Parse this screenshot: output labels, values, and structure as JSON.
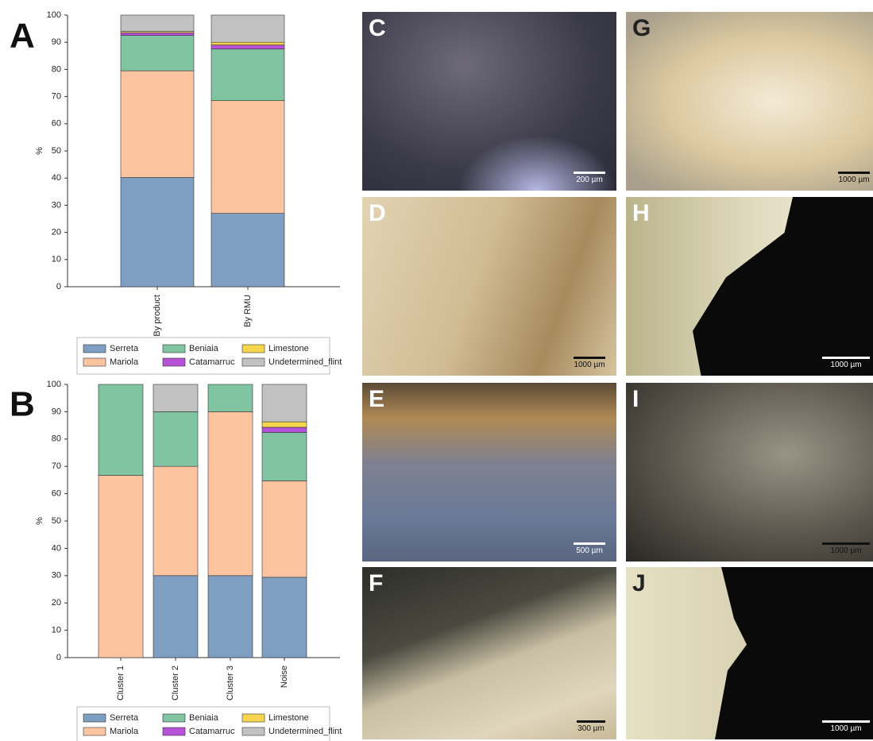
{
  "chart_data": [
    {
      "type": "stacked-bar",
      "panel_label": "A",
      "ylabel": "%",
      "categories": [
        "By product",
        "By RMU"
      ],
      "series": [
        {
          "name": "Serreta",
          "color": "#7f9fc2",
          "values": [
            40.2,
            27
          ]
        },
        {
          "name": "Mariola",
          "color": "#fdc4a2",
          "values": [
            39.3,
            41.5
          ]
        },
        {
          "name": "Beniaia",
          "color": "#80c4a1",
          "values": [
            13,
            19
          ]
        },
        {
          "name": "Catamarruc",
          "color": "#b552d8",
          "values": [
            1,
            1.5
          ]
        },
        {
          "name": "Limestone",
          "color": "#f6d64c",
          "values": [
            0.5,
            1
          ]
        },
        {
          "name": "Undetermined_flint",
          "color": "#c2c2c2",
          "values": [
            6,
            10
          ]
        }
      ],
      "ylim": [
        0,
        100
      ],
      "yticks": [
        0,
        10,
        20,
        30,
        40,
        50,
        60,
        70,
        80,
        90,
        100
      ]
    },
    {
      "type": "stacked-bar",
      "panel_label": "B",
      "ylabel": "%",
      "categories": [
        "Cluster 1",
        "Cluster 2",
        "Cluster 3",
        "Noise"
      ],
      "series": [
        {
          "name": "Serreta",
          "color": "#7f9fc2",
          "values": [
            0,
            30,
            30,
            29.4
          ]
        },
        {
          "name": "Mariola",
          "color": "#fdc4a2",
          "values": [
            66.7,
            40,
            60,
            35.3
          ]
        },
        {
          "name": "Beniaia",
          "color": "#80c4a1",
          "values": [
            33.3,
            20,
            10,
            17.7
          ]
        },
        {
          "name": "Catamarruc",
          "color": "#b552d8",
          "values": [
            0,
            0,
            0,
            1.9
          ]
        },
        {
          "name": "Limestone",
          "color": "#f6d64c",
          "values": [
            0,
            0,
            0,
            2
          ]
        },
        {
          "name": "Undetermined_flint",
          "color": "#c2c2c2",
          "values": [
            0,
            10,
            0,
            13.7
          ]
        }
      ],
      "ylim": [
        0,
        100
      ],
      "yticks": [
        0,
        10,
        20,
        30,
        40,
        50,
        60,
        70,
        80,
        90,
        100
      ]
    }
  ],
  "photos": [
    {
      "label": "C",
      "scale": "200 µm"
    },
    {
      "label": "D",
      "scale": "1000 µm"
    },
    {
      "label": "E",
      "scale": "500 µm"
    },
    {
      "label": "F",
      "scale": "300 µm"
    },
    {
      "label": "G",
      "scale": "1000 µm"
    },
    {
      "label": "H",
      "scale": "1000 µm"
    },
    {
      "label": "I",
      "scale": "1000 µm"
    },
    {
      "label": "J",
      "scale": "1000 µm"
    }
  ]
}
